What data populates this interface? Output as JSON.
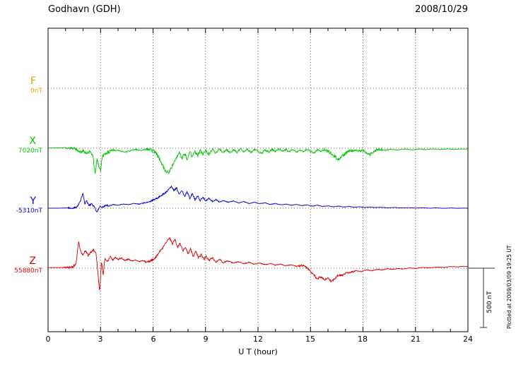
{
  "header": {
    "station": "Godhavn (GDH)",
    "date": "2008/10/29"
  },
  "axis": {
    "xlabel": "U T (hour)",
    "tick_labels": [
      "0",
      "3",
      "6",
      "9",
      "12",
      "15",
      "18",
      "21",
      "24"
    ]
  },
  "components": [
    {
      "label": "F",
      "value": "0nT",
      "color": "#e8a000"
    },
    {
      "label": "X",
      "value": "7020nT",
      "color": "#00c400"
    },
    {
      "label": "Y",
      "value": "-5310nT",
      "color": "#0000d0"
    },
    {
      "label": "Z",
      "value": "55880nT",
      "color": "#e00000"
    }
  ],
  "scale_bar": {
    "label": "500 nT",
    "nT": 500
  },
  "footer_note": "Plotted at 2009/03/09 19:25 UT",
  "chart_data": {
    "type": "line",
    "title": "Godhavn (GDH) magnetogram 2008/10/29",
    "xlabel": "U T (hour)",
    "xlim": [
      0,
      24
    ],
    "x_ticks": [
      0,
      3,
      6,
      9,
      12,
      15,
      18,
      21,
      24
    ],
    "scale_nT_per_div": 500,
    "grid": "dotted",
    "series": [
      {
        "name": "F",
        "baseline_nT": 0,
        "color": "#e8a000",
        "noise_nT": 0,
        "points": []
      },
      {
        "name": "X",
        "baseline_nT": 7020,
        "color": "#00c400",
        "noise_nT": 10,
        "points": [
          [
            0,
            2
          ],
          [
            0.5,
            2
          ],
          [
            1,
            3
          ],
          [
            1.4,
            0
          ],
          [
            1.6,
            -10
          ],
          [
            1.8,
            -35
          ],
          [
            2,
            -20
          ],
          [
            2.2,
            -45
          ],
          [
            2.4,
            -30
          ],
          [
            2.55,
            -60
          ],
          [
            2.7,
            -210
          ],
          [
            2.8,
            -90
          ],
          [
            2.9,
            -150
          ],
          [
            3,
            -190
          ],
          [
            3.1,
            -70
          ],
          [
            3.25,
            -45
          ],
          [
            3.5,
            -30
          ],
          [
            3.8,
            -15
          ],
          [
            4.1,
            -20
          ],
          [
            4.4,
            -35
          ],
          [
            4.7,
            -20
          ],
          [
            5,
            -10
          ],
          [
            5.3,
            -20
          ],
          [
            5.6,
            -10
          ],
          [
            5.9,
            -15
          ],
          [
            6.1,
            -30
          ],
          [
            6.3,
            -70
          ],
          [
            6.5,
            -130
          ],
          [
            6.7,
            -195
          ],
          [
            6.9,
            -205
          ],
          [
            7.1,
            -150
          ],
          [
            7.3,
            -80
          ],
          [
            7.5,
            -40
          ],
          [
            7.65,
            -90
          ],
          [
            7.8,
            -40
          ],
          [
            7.95,
            -95
          ],
          [
            8.1,
            -30
          ],
          [
            8.25,
            -75
          ],
          [
            8.4,
            -25
          ],
          [
            8.55,
            -65
          ],
          [
            8.7,
            -15
          ],
          [
            8.85,
            -55
          ],
          [
            9,
            -20
          ],
          [
            9.2,
            -50
          ],
          [
            9.4,
            -10
          ],
          [
            9.6,
            -40
          ],
          [
            9.8,
            -5
          ],
          [
            10,
            -35
          ],
          [
            10.2,
            -10
          ],
          [
            10.4,
            -40
          ],
          [
            10.6,
            -15
          ],
          [
            10.8,
            -35
          ],
          [
            11,
            -5
          ],
          [
            11.2,
            -30
          ],
          [
            11.4,
            -10
          ],
          [
            11.6,
            -35
          ],
          [
            11.8,
            -10
          ],
          [
            12,
            -25
          ],
          [
            12.2,
            -45
          ],
          [
            12.4,
            -15
          ],
          [
            12.6,
            -35
          ],
          [
            12.8,
            -10
          ],
          [
            13,
            -30
          ],
          [
            13.2,
            -5
          ],
          [
            13.4,
            -25
          ],
          [
            13.6,
            -10
          ],
          [
            13.8,
            -30
          ],
          [
            14,
            -10
          ],
          [
            14.2,
            -35
          ],
          [
            14.4,
            -15
          ],
          [
            14.6,
            -30
          ],
          [
            14.8,
            -10
          ],
          [
            15,
            -25
          ],
          [
            15.2,
            -40
          ],
          [
            15.4,
            -15
          ],
          [
            15.6,
            -30
          ],
          [
            15.8,
            -10
          ],
          [
            16,
            -25
          ],
          [
            16.2,
            -45
          ],
          [
            16.4,
            -70
          ],
          [
            16.6,
            -95
          ],
          [
            16.8,
            -70
          ],
          [
            17,
            -45
          ],
          [
            17.2,
            -25
          ],
          [
            17.5,
            -15
          ],
          [
            17.8,
            -25
          ],
          [
            18,
            -15
          ],
          [
            18.2,
            -45
          ],
          [
            18.4,
            -55
          ],
          [
            18.6,
            -30
          ],
          [
            18.8,
            -15
          ],
          [
            19,
            -10
          ],
          [
            19.3,
            -18
          ],
          [
            19.6,
            -8
          ],
          [
            20,
            -15
          ],
          [
            20.4,
            -6
          ],
          [
            20.8,
            -14
          ],
          [
            21.2,
            -6
          ],
          [
            21.6,
            -12
          ],
          [
            22,
            -5
          ],
          [
            22.4,
            -12
          ],
          [
            22.8,
            -5
          ],
          [
            23.2,
            -10
          ],
          [
            23.6,
            -6
          ],
          [
            24,
            -8
          ]
        ]
      },
      {
        "name": "Y",
        "baseline_nT": -5310,
        "color": "#0000d0",
        "noise_nT": 6,
        "points": [
          [
            0,
            0
          ],
          [
            0.5,
            0
          ],
          [
            1,
            2
          ],
          [
            1.5,
            2
          ],
          [
            1.7,
            15
          ],
          [
            1.85,
            60
          ],
          [
            2,
            130
          ],
          [
            2.1,
            40
          ],
          [
            2.2,
            60
          ],
          [
            2.35,
            25
          ],
          [
            2.5,
            35
          ],
          [
            2.65,
            10
          ],
          [
            2.8,
            -35
          ],
          [
            2.95,
            15
          ],
          [
            3.1,
            5
          ],
          [
            3.3,
            25
          ],
          [
            3.5,
            20
          ],
          [
            3.7,
            30
          ],
          [
            4,
            25
          ],
          [
            4.3,
            35
          ],
          [
            4.6,
            30
          ],
          [
            4.9,
            40
          ],
          [
            5.2,
            35
          ],
          [
            5.5,
            45
          ],
          [
            5.8,
            55
          ],
          [
            6.1,
            75
          ],
          [
            6.4,
            100
          ],
          [
            6.7,
            130
          ],
          [
            6.9,
            160
          ],
          [
            7.05,
            185
          ],
          [
            7.2,
            150
          ],
          [
            7.35,
            170
          ],
          [
            7.5,
            120
          ],
          [
            7.65,
            155
          ],
          [
            7.8,
            95
          ],
          [
            7.95,
            140
          ],
          [
            8.1,
            80
          ],
          [
            8.25,
            125
          ],
          [
            8.4,
            70
          ],
          [
            8.55,
            105
          ],
          [
            8.7,
            65
          ],
          [
            8.85,
            95
          ],
          [
            9,
            60
          ],
          [
            9.2,
            85
          ],
          [
            9.4,
            55
          ],
          [
            9.6,
            75
          ],
          [
            9.8,
            50
          ],
          [
            10,
            65
          ],
          [
            10.3,
            50
          ],
          [
            10.6,
            60
          ],
          [
            10.9,
            45
          ],
          [
            11.2,
            55
          ],
          [
            11.5,
            40
          ],
          [
            11.8,
            50
          ],
          [
            12.1,
            38
          ],
          [
            12.4,
            45
          ],
          [
            12.7,
            32
          ],
          [
            13,
            40
          ],
          [
            13.3,
            28
          ],
          [
            13.6,
            35
          ],
          [
            13.9,
            25
          ],
          [
            14.2,
            32
          ],
          [
            14.5,
            22
          ],
          [
            14.8,
            28
          ],
          [
            15.1,
            18
          ],
          [
            15.4,
            25
          ],
          [
            15.7,
            15
          ],
          [
            16,
            20
          ],
          [
            16.3,
            12
          ],
          [
            16.6,
            18
          ],
          [
            16.9,
            10
          ],
          [
            17.2,
            15
          ],
          [
            17.5,
            8
          ],
          [
            17.8,
            12
          ],
          [
            18.1,
            6
          ],
          [
            18.4,
            10
          ],
          [
            18.7,
            5
          ],
          [
            19,
            8
          ],
          [
            19.4,
            3
          ],
          [
            19.8,
            6
          ],
          [
            20.2,
            2
          ],
          [
            20.6,
            5
          ],
          [
            21,
            1
          ],
          [
            21.4,
            4
          ],
          [
            21.8,
            0
          ],
          [
            22.2,
            3
          ],
          [
            22.6,
            -1
          ],
          [
            23,
            2
          ],
          [
            23.4,
            -1
          ],
          [
            23.7,
            1
          ],
          [
            24,
            0
          ]
        ]
      },
      {
        "name": "Z",
        "baseline_nT": 55880,
        "color": "#e00000",
        "noise_nT": 7,
        "points": [
          [
            0,
            5
          ],
          [
            0.5,
            5
          ],
          [
            1,
            6
          ],
          [
            1.4,
            8
          ],
          [
            1.6,
            40
          ],
          [
            1.75,
            230
          ],
          [
            1.85,
            150
          ],
          [
            2,
            110
          ],
          [
            2.15,
            150
          ],
          [
            2.3,
            105
          ],
          [
            2.45,
            135
          ],
          [
            2.6,
            155
          ],
          [
            2.75,
            120
          ],
          [
            2.85,
            -40
          ],
          [
            2.95,
            -200
          ],
          [
            3.05,
            60
          ],
          [
            3.15,
            -60
          ],
          [
            3.25,
            85
          ],
          [
            3.4,
            55
          ],
          [
            3.55,
            95
          ],
          [
            3.7,
            70
          ],
          [
            3.85,
            90
          ],
          [
            4,
            75
          ],
          [
            4.2,
            85
          ],
          [
            4.4,
            65
          ],
          [
            4.6,
            78
          ],
          [
            4.8,
            60
          ],
          [
            5,
            70
          ],
          [
            5.2,
            55
          ],
          [
            5.4,
            65
          ],
          [
            5.6,
            52
          ],
          [
            5.8,
            60
          ],
          [
            6,
            72
          ],
          [
            6.2,
            100
          ],
          [
            6.4,
            140
          ],
          [
            6.6,
            185
          ],
          [
            6.8,
            230
          ],
          [
            6.95,
            255
          ],
          [
            7.1,
            205
          ],
          [
            7.25,
            245
          ],
          [
            7.4,
            175
          ],
          [
            7.55,
            215
          ],
          [
            7.7,
            140
          ],
          [
            7.85,
            185
          ],
          [
            8,
            120
          ],
          [
            8.15,
            165
          ],
          [
            8.3,
            100
          ],
          [
            8.45,
            140
          ],
          [
            8.6,
            85
          ],
          [
            8.75,
            115
          ],
          [
            8.9,
            75
          ],
          [
            9.05,
            100
          ],
          [
            9.2,
            65
          ],
          [
            9.4,
            85
          ],
          [
            9.6,
            55
          ],
          [
            9.8,
            75
          ],
          [
            10,
            48
          ],
          [
            10.3,
            62
          ],
          [
            10.6,
            42
          ],
          [
            10.9,
            55
          ],
          [
            11.2,
            38
          ],
          [
            11.5,
            50
          ],
          [
            11.8,
            33
          ],
          [
            12.1,
            45
          ],
          [
            12.4,
            28
          ],
          [
            12.7,
            40
          ],
          [
            13,
            25
          ],
          [
            13.3,
            35
          ],
          [
            13.6,
            20
          ],
          [
            13.9,
            30
          ],
          [
            14.2,
            15
          ],
          [
            14.5,
            25
          ],
          [
            14.8,
            5
          ],
          [
            15,
            -30
          ],
          [
            15.2,
            -60
          ],
          [
            15.4,
            -90
          ],
          [
            15.6,
            -70
          ],
          [
            15.8,
            -100
          ],
          [
            16,
            -80
          ],
          [
            16.2,
            -115
          ],
          [
            16.4,
            -85
          ],
          [
            16.6,
            -55
          ],
          [
            16.8,
            -65
          ],
          [
            17,
            -40
          ],
          [
            17.3,
            -35
          ],
          [
            17.6,
            -20
          ],
          [
            17.9,
            -28
          ],
          [
            18.2,
            -15
          ],
          [
            18.5,
            -22
          ],
          [
            18.8,
            -10
          ],
          [
            19.1,
            -15
          ],
          [
            19.4,
            -5
          ],
          [
            19.7,
            -10
          ],
          [
            20,
            -2
          ],
          [
            20.3,
            -8
          ],
          [
            20.6,
            2
          ],
          [
            21,
            -2
          ],
          [
            21.4,
            6
          ],
          [
            21.8,
            2
          ],
          [
            22.2,
            10
          ],
          [
            22.6,
            6
          ],
          [
            23,
            14
          ],
          [
            23.4,
            10
          ],
          [
            23.7,
            16
          ],
          [
            24,
            14
          ]
        ]
      }
    ]
  }
}
